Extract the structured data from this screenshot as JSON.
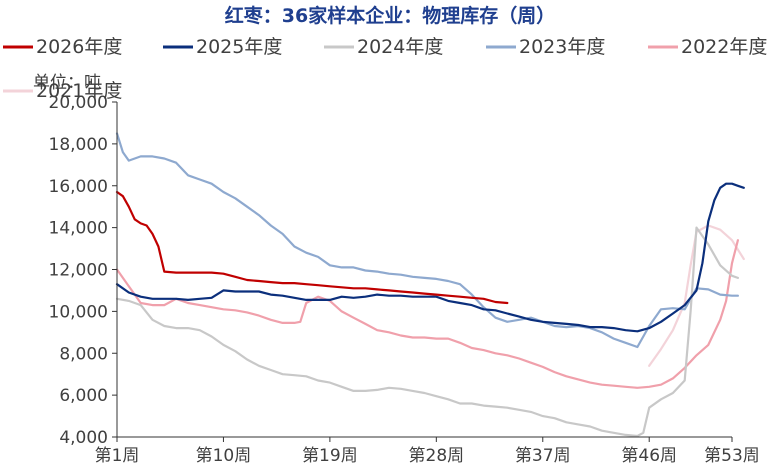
{
  "chart_data": {
    "type": "line",
    "title": "红枣：36家样本企业：物理库存（周）",
    "unit_label": "单位：吨",
    "xlabel": "",
    "ylabel": "",
    "xlim": [
      1,
      53
    ],
    "ylim": [
      4000,
      20000
    ],
    "y_ticks": [
      4000,
      6000,
      8000,
      10000,
      12000,
      14000,
      16000,
      18000,
      20000
    ],
    "y_tick_labels": [
      "4,000",
      "6,000",
      "8,000",
      "10,000",
      "12,000",
      "14,000",
      "16,000",
      "18,000",
      "20,000"
    ],
    "x_ticks": [
      1,
      10,
      19,
      28,
      37,
      46,
      53
    ],
    "x_tick_labels": [
      "第1周",
      "第10周",
      "第19周",
      "第28周",
      "第37周",
      "第46周",
      "第53周"
    ],
    "grid": false,
    "legend_position": "top",
    "series": [
      {
        "name": "2026年度",
        "color": "#c00000",
        "points": [
          [
            1,
            15700
          ],
          [
            1.5,
            15500
          ],
          [
            2,
            15000
          ],
          [
            2.5,
            14400
          ],
          [
            3,
            14200
          ],
          [
            3.5,
            14100
          ],
          [
            4,
            13700
          ],
          [
            4.5,
            13100
          ],
          [
            5,
            11900
          ],
          [
            6,
            11850
          ],
          [
            7,
            11850
          ],
          [
            8,
            11850
          ],
          [
            9,
            11850
          ],
          [
            10,
            11800
          ],
          [
            11,
            11650
          ],
          [
            12,
            11500
          ],
          [
            13,
            11450
          ],
          [
            14,
            11400
          ],
          [
            15,
            11350
          ],
          [
            16,
            11350
          ],
          [
            17,
            11300
          ],
          [
            18,
            11250
          ],
          [
            19,
            11200
          ],
          [
            20,
            11150
          ],
          [
            21,
            11100
          ],
          [
            22,
            11100
          ],
          [
            23,
            11050
          ],
          [
            24,
            11000
          ],
          [
            25,
            10950
          ],
          [
            26,
            10900
          ],
          [
            27,
            10850
          ],
          [
            28,
            10800
          ],
          [
            29,
            10750
          ],
          [
            30,
            10700
          ],
          [
            31,
            10650
          ],
          [
            32,
            10600
          ],
          [
            33,
            10450
          ],
          [
            34,
            10400
          ]
        ]
      },
      {
        "name": "2025年度",
        "color": "#0b2f7c",
        "points": [
          [
            1,
            11300
          ],
          [
            2,
            10900
          ],
          [
            3,
            10700
          ],
          [
            4,
            10600
          ],
          [
            5,
            10600
          ],
          [
            6,
            10600
          ],
          [
            7,
            10550
          ],
          [
            8,
            10600
          ],
          [
            9,
            10650
          ],
          [
            10,
            11000
          ],
          [
            11,
            10950
          ],
          [
            12,
            10950
          ],
          [
            13,
            10950
          ],
          [
            14,
            10800
          ],
          [
            15,
            10750
          ],
          [
            16,
            10650
          ],
          [
            17,
            10550
          ],
          [
            18,
            10550
          ],
          [
            19,
            10550
          ],
          [
            20,
            10700
          ],
          [
            21,
            10650
          ],
          [
            22,
            10700
          ],
          [
            23,
            10800
          ],
          [
            24,
            10750
          ],
          [
            25,
            10750
          ],
          [
            26,
            10700
          ],
          [
            27,
            10700
          ],
          [
            28,
            10700
          ],
          [
            29,
            10500
          ],
          [
            30,
            10400
          ],
          [
            31,
            10300
          ],
          [
            32,
            10100
          ],
          [
            33,
            10050
          ],
          [
            34,
            9900
          ],
          [
            35,
            9750
          ],
          [
            36,
            9600
          ],
          [
            37,
            9500
          ],
          [
            38,
            9450
          ],
          [
            39,
            9400
          ],
          [
            40,
            9350
          ],
          [
            41,
            9250
          ],
          [
            42,
            9250
          ],
          [
            43,
            9200
          ],
          [
            44,
            9100
          ],
          [
            45,
            9050
          ],
          [
            46,
            9200
          ],
          [
            47,
            9500
          ],
          [
            48,
            9900
          ],
          [
            49,
            10300
          ],
          [
            50,
            11000
          ],
          [
            50.5,
            12300
          ],
          [
            51,
            14300
          ],
          [
            51.5,
            15300
          ],
          [
            52,
            15900
          ],
          [
            52.5,
            16100
          ],
          [
            53,
            16100
          ],
          [
            53.5,
            16000
          ],
          [
            54,
            15900
          ]
        ]
      },
      {
        "name": "2024年度",
        "color": "#c8c8c8",
        "points": [
          [
            1,
            10600
          ],
          [
            2,
            10500
          ],
          [
            3,
            10300
          ],
          [
            4,
            9600
          ],
          [
            5,
            9300
          ],
          [
            6,
            9200
          ],
          [
            7,
            9200
          ],
          [
            8,
            9100
          ],
          [
            9,
            8800
          ],
          [
            10,
            8400
          ],
          [
            11,
            8100
          ],
          [
            12,
            7700
          ],
          [
            13,
            7400
          ],
          [
            14,
            7200
          ],
          [
            15,
            7000
          ],
          [
            16,
            6950
          ],
          [
            17,
            6900
          ],
          [
            18,
            6700
          ],
          [
            19,
            6600
          ],
          [
            20,
            6400
          ],
          [
            21,
            6200
          ],
          [
            22,
            6200
          ],
          [
            23,
            6250
          ],
          [
            24,
            6350
          ],
          [
            25,
            6300
          ],
          [
            26,
            6200
          ],
          [
            27,
            6100
          ],
          [
            28,
            5950
          ],
          [
            29,
            5800
          ],
          [
            30,
            5600
          ],
          [
            31,
            5600
          ],
          [
            32,
            5500
          ],
          [
            33,
            5450
          ],
          [
            34,
            5400
          ],
          [
            35,
            5300
          ],
          [
            36,
            5200
          ],
          [
            37,
            5000
          ],
          [
            38,
            4900
          ],
          [
            39,
            4700
          ],
          [
            40,
            4600
          ],
          [
            41,
            4500
          ],
          [
            42,
            4300
          ],
          [
            43,
            4200
          ],
          [
            44,
            4100
          ],
          [
            45,
            4050
          ],
          [
            45.5,
            4200
          ],
          [
            46,
            5400
          ],
          [
            47,
            5800
          ],
          [
            48,
            6100
          ],
          [
            49,
            6700
          ],
          [
            49.5,
            10000
          ],
          [
            50,
            14000
          ],
          [
            51,
            13200
          ],
          [
            52,
            12200
          ],
          [
            53,
            11700
          ],
          [
            53.5,
            11600
          ]
        ]
      },
      {
        "name": "2023年度",
        "color": "#8ea9cf",
        "points": [
          [
            1,
            18500
          ],
          [
            1.5,
            17600
          ],
          [
            2,
            17200
          ],
          [
            3,
            17400
          ],
          [
            4,
            17400
          ],
          [
            5,
            17300
          ],
          [
            6,
            17100
          ],
          [
            7,
            16500
          ],
          [
            8,
            16300
          ],
          [
            9,
            16100
          ],
          [
            10,
            15700
          ],
          [
            11,
            15400
          ],
          [
            12,
            15000
          ],
          [
            13,
            14600
          ],
          [
            14,
            14100
          ],
          [
            15,
            13700
          ],
          [
            16,
            13100
          ],
          [
            17,
            12800
          ],
          [
            18,
            12600
          ],
          [
            19,
            12200
          ],
          [
            20,
            12100
          ],
          [
            21,
            12100
          ],
          [
            22,
            11950
          ],
          [
            23,
            11900
          ],
          [
            24,
            11800
          ],
          [
            25,
            11750
          ],
          [
            26,
            11650
          ],
          [
            27,
            11600
          ],
          [
            28,
            11550
          ],
          [
            29,
            11450
          ],
          [
            30,
            11300
          ],
          [
            31,
            10800
          ],
          [
            32,
            10200
          ],
          [
            33,
            9700
          ],
          [
            34,
            9500
          ],
          [
            35,
            9600
          ],
          [
            36,
            9700
          ],
          [
            37,
            9500
          ],
          [
            38,
            9300
          ],
          [
            39,
            9250
          ],
          [
            40,
            9300
          ],
          [
            41,
            9200
          ],
          [
            42,
            9000
          ],
          [
            43,
            8700
          ],
          [
            44,
            8500
          ],
          [
            45,
            8300
          ],
          [
            46,
            9300
          ],
          [
            47,
            10100
          ],
          [
            48,
            10150
          ],
          [
            49,
            10100
          ],
          [
            50,
            11100
          ],
          [
            51,
            11050
          ],
          [
            52,
            10800
          ],
          [
            53,
            10750
          ],
          [
            53.5,
            10750
          ]
        ]
      },
      {
        "name": "2022年度",
        "color": "#f0a0ab",
        "points": [
          [
            1,
            12000
          ],
          [
            2,
            11200
          ],
          [
            3,
            10400
          ],
          [
            4,
            10300
          ],
          [
            5,
            10300
          ],
          [
            6,
            10600
          ],
          [
            7,
            10400
          ],
          [
            8,
            10300
          ],
          [
            9,
            10200
          ],
          [
            10,
            10100
          ],
          [
            11,
            10050
          ],
          [
            12,
            9950
          ],
          [
            13,
            9800
          ],
          [
            14,
            9600
          ],
          [
            15,
            9450
          ],
          [
            16,
            9450
          ],
          [
            16.5,
            9500
          ],
          [
            17,
            10400
          ],
          [
            18,
            10700
          ],
          [
            19,
            10500
          ],
          [
            20,
            10000
          ],
          [
            21,
            9700
          ],
          [
            22,
            9400
          ],
          [
            23,
            9100
          ],
          [
            24,
            9000
          ],
          [
            25,
            8850
          ],
          [
            26,
            8750
          ],
          [
            27,
            8750
          ],
          [
            28,
            8700
          ],
          [
            29,
            8700
          ],
          [
            30,
            8500
          ],
          [
            31,
            8250
          ],
          [
            32,
            8150
          ],
          [
            33,
            8000
          ],
          [
            34,
            7900
          ],
          [
            35,
            7750
          ],
          [
            36,
            7550
          ],
          [
            37,
            7350
          ],
          [
            38,
            7100
          ],
          [
            39,
            6900
          ],
          [
            40,
            6750
          ],
          [
            41,
            6600
          ],
          [
            42,
            6500
          ],
          [
            43,
            6450
          ],
          [
            44,
            6400
          ],
          [
            45,
            6350
          ],
          [
            46,
            6400
          ],
          [
            47,
            6500
          ],
          [
            48,
            6800
          ],
          [
            49,
            7300
          ],
          [
            50,
            7900
          ],
          [
            51,
            8400
          ],
          [
            52,
            9600
          ],
          [
            52.5,
            10500
          ],
          [
            53,
            12300
          ],
          [
            53.5,
            13400
          ]
        ]
      },
      {
        "name": "2021年度",
        "color": "#f3d3d9",
        "points": [
          [
            46,
            7400
          ],
          [
            47,
            8200
          ],
          [
            48,
            9100
          ],
          [
            49,
            10400
          ],
          [
            49.5,
            12200
          ],
          [
            50,
            13800
          ],
          [
            51,
            14100
          ],
          [
            52,
            13900
          ],
          [
            53,
            13400
          ],
          [
            54,
            12500
          ]
        ]
      }
    ]
  }
}
